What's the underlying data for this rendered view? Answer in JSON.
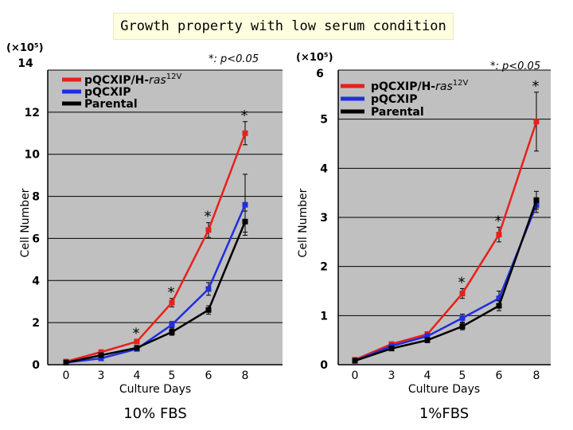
{
  "title": "Growth property with low serum condition",
  "chart_data": [
    {
      "type": "line",
      "panel_label": "10% FBS",
      "multiplier": "(×10⁵)",
      "significance_note": "*: p<0.05",
      "xlabel": "Culture Days",
      "ylabel": "Cell Number",
      "x": [
        0,
        3,
        4,
        5,
        6,
        8
      ],
      "x_tick_labels": [
        "0",
        "3",
        "4",
        "5",
        "6",
        "8"
      ],
      "ylim": [
        0,
        14
      ],
      "y_tick_labels": [
        "0",
        "2",
        "4",
        "6",
        "8",
        "10",
        "12",
        "14"
      ],
      "grid": true,
      "legend_position": "top-left",
      "series": [
        {
          "name": "pQCXIP/H-ras",
          "name_sup": "12V",
          "color": "#e8201a",
          "values": [
            0.15,
            0.6,
            1.1,
            2.95,
            6.4,
            11.0
          ],
          "err": [
            0.05,
            0.05,
            0.1,
            0.2,
            0.35,
            0.55
          ]
        },
        {
          "name": "pQCXIP",
          "color": "#1f2ee0",
          "values": [
            0.1,
            0.3,
            0.75,
            1.9,
            3.6,
            7.6
          ],
          "err": [
            0.05,
            0.05,
            0.1,
            0.15,
            0.3,
            1.45
          ]
        },
        {
          "name": "Parental",
          "color": "#000000",
          "values": [
            0.1,
            0.45,
            0.8,
            1.55,
            2.6,
            6.8
          ],
          "err": [
            0.05,
            0.05,
            0.1,
            0.15,
            0.2,
            0.5
          ]
        }
      ],
      "significance_at": [
        4,
        5,
        6,
        8
      ]
    },
    {
      "type": "line",
      "panel_label": "1%FBS",
      "multiplier": "(×10⁵)",
      "significance_note": "*: p<0.05",
      "xlabel": "Culture Days",
      "ylabel": "Cell Number",
      "x": [
        0,
        3,
        4,
        5,
        6,
        8
      ],
      "x_tick_labels": [
        "0",
        "3",
        "4",
        "5",
        "6",
        "8"
      ],
      "ylim": [
        0,
        6
      ],
      "y_tick_labels": [
        "0",
        "1",
        "2",
        "3",
        "4",
        "5",
        "6"
      ],
      "grid": true,
      "legend_position": "top-right",
      "series": [
        {
          "name": "pQCXIP/H-ras",
          "name_sup": "12V",
          "color": "#e8201a",
          "values": [
            0.1,
            0.42,
            0.62,
            1.45,
            2.65,
            4.95
          ],
          "err": [
            0.03,
            0.04,
            0.05,
            0.1,
            0.15,
            0.6
          ]
        },
        {
          "name": "pQCXIP",
          "color": "#1f2ee0",
          "values": [
            0.08,
            0.38,
            0.58,
            0.95,
            1.35,
            3.25
          ],
          "err": [
            0.03,
            0.04,
            0.05,
            0.08,
            0.15,
            0.15
          ]
        },
        {
          "name": "Parental",
          "color": "#000000",
          "values": [
            0.08,
            0.33,
            0.5,
            0.78,
            1.2,
            3.35
          ],
          "err": [
            0.03,
            0.04,
            0.05,
            0.07,
            0.1,
            0.18
          ]
        }
      ],
      "significance_at": [
        5,
        6,
        8
      ]
    }
  ]
}
